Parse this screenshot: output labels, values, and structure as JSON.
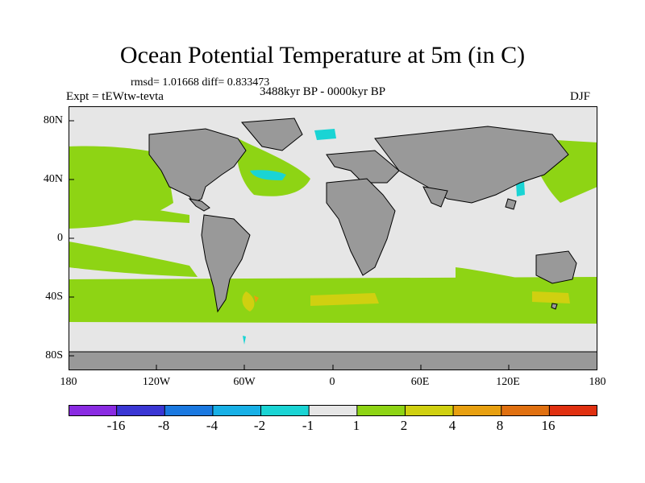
{
  "figure": {
    "title": "Ocean Potential Temperature at 5m (in C)",
    "stats": "rmsd= 1.01668 diff= 0.833473",
    "experiment": "Expt = tEWtw-tevta",
    "period": "3488kyr BP - 0000kyr BP",
    "season": "DJF"
  },
  "map": {
    "projection": "cylindrical equidistant",
    "lon_range": [
      -180,
      180
    ],
    "lat_range": [
      -90,
      90
    ],
    "lat_tick_labels": [
      "80N",
      "40N",
      "0",
      "40S",
      "80S"
    ],
    "lat_tick_values": [
      80,
      40,
      0,
      -40,
      -80
    ],
    "lon_tick_labels": [
      "180",
      "120W",
      "60W",
      "0",
      "60E",
      "120E",
      "180"
    ],
    "lon_tick_values": [
      -180,
      -120,
      -60,
      0,
      60,
      120,
      180
    ],
    "colors": {
      "land": "#999999",
      "ocean_neutral": "#e6e6e6",
      "coast": "#000000",
      "frame": "#000000"
    }
  },
  "chart_data": {
    "type": "heatmap",
    "title": "Ocean Potential Temperature at 5m (in C)",
    "variable": "ocean potential temperature difference at 5m (C)",
    "colorbar": {
      "levels": [
        -16,
        -8,
        -4,
        -2,
        -1,
        1,
        2,
        4,
        8,
        16
      ],
      "tick_labels": [
        "-16",
        "-8",
        "-4",
        "-2",
        "-1",
        "1",
        "2",
        "4",
        "8",
        "16"
      ],
      "colors": [
        "#8a2be2",
        "#3a36d4",
        "#1a78e0",
        "#18b0e6",
        "#1ad4d4",
        "#e6e6e6",
        "#8ed414",
        "#d0d010",
        "#e8a010",
        "#e07010",
        "#e03010"
      ]
    }
  }
}
